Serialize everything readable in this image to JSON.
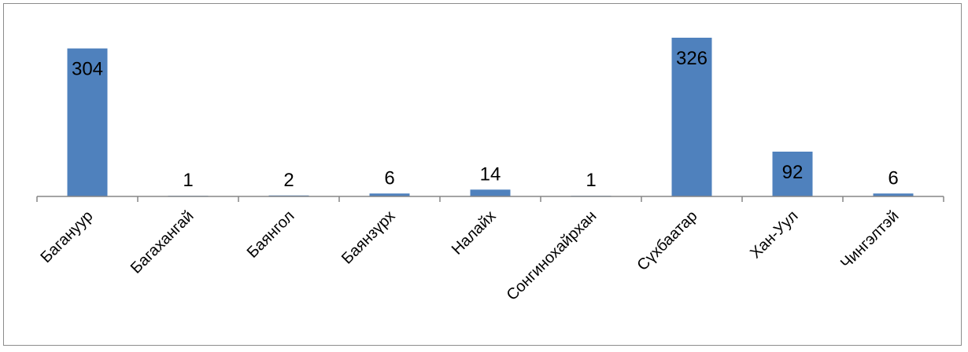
{
  "chart_data": {
    "type": "bar",
    "title": "",
    "xlabel": "",
    "ylabel": "",
    "categories": [
      "Багануур",
      "Багахангай",
      "Баянгол",
      "Баянзүрх",
      "Налайх",
      "Сонгинохайрхан",
      "Сүхбаатар",
      "Хан-Уул",
      "Чингэлтэй"
    ],
    "values": [
      304,
      1,
      2,
      6,
      14,
      1,
      326,
      92,
      6
    ],
    "ylim": [
      0,
      326
    ],
    "grid": false,
    "legend": "none",
    "y_axis_visible": false,
    "data_labels": true,
    "colors": {
      "bar": "#4f81bd",
      "axis": "#868686",
      "frame": "#8c8c8c",
      "text": "#000000"
    }
  }
}
